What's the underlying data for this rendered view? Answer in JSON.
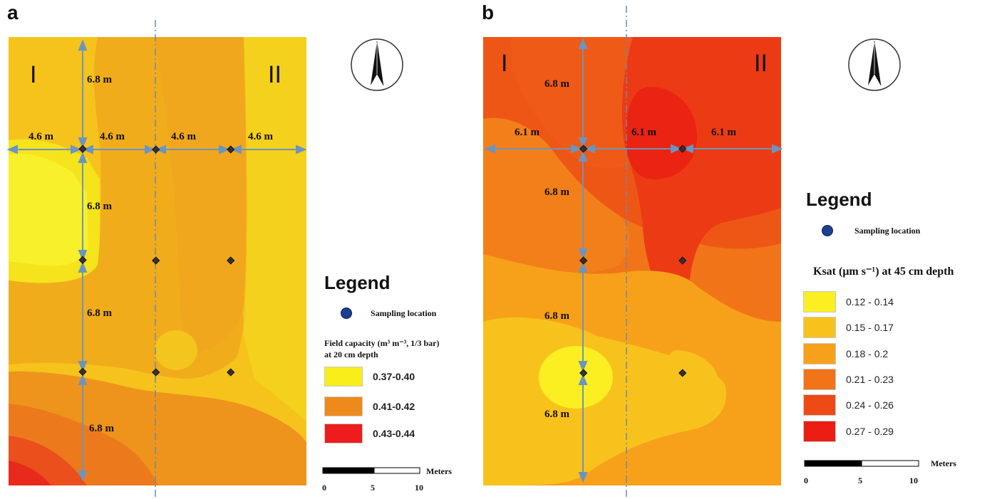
{
  "panels": [
    {
      "letter": "a",
      "zone_left": "I",
      "zone_right": "II",
      "dims_vertical": [
        "6.8 m",
        "6.8 m",
        "6.8 m",
        "6.8 m"
      ],
      "dims_horizontal": [
        "4.6 m",
        "4.6 m",
        "4.6 m",
        "4.6 m"
      ],
      "legend": {
        "title": "Legend",
        "sampling_label": "Sampling location",
        "variable_line1": "Field capacity (m³ m⁻³,  1/3 bar)",
        "variable_line2": "at 20 cm depth",
        "classes": [
          {
            "label": "0.37-0.40",
            "color": "#f7ee1a"
          },
          {
            "label": "0.41-0.42",
            "color": "#ee8a1c"
          },
          {
            "label": "0.43-0.44",
            "color": "#ee1c1c"
          }
        ],
        "scale_unit": "Meters",
        "scale_ticks": [
          "0",
          "5",
          "10"
        ]
      }
    },
    {
      "letter": "b",
      "zone_left": "I",
      "zone_right": "II",
      "dims_vertical": [
        "6.8 m",
        "6.8 m",
        "6.8 m",
        "6.8 m"
      ],
      "dims_horizontal": [
        "6.1 m",
        "6.1 m",
        "6.1 m"
      ],
      "legend": {
        "title": "Legend",
        "sampling_label": "Sampling location",
        "variable": "Ksat (μm s⁻¹) at 45 cm depth",
        "classes": [
          {
            "label": "0.12 - 0.14",
            "color": "#fbef22"
          },
          {
            "label": "0.15 - 0.17",
            "color": "#f8c21c"
          },
          {
            "label": "0.18 - 0.2",
            "color": "#f7a11a"
          },
          {
            "label": "0.21 - 0.23",
            "color": "#f27418"
          },
          {
            "label": "0.24 - 0.26",
            "color": "#ee4a16"
          },
          {
            "label": "0.27 - 0.29",
            "color": "#ea1e14"
          }
        ],
        "scale_unit": "Meters",
        "scale_ticks": [
          "0",
          "5",
          "10"
        ]
      }
    }
  ]
}
